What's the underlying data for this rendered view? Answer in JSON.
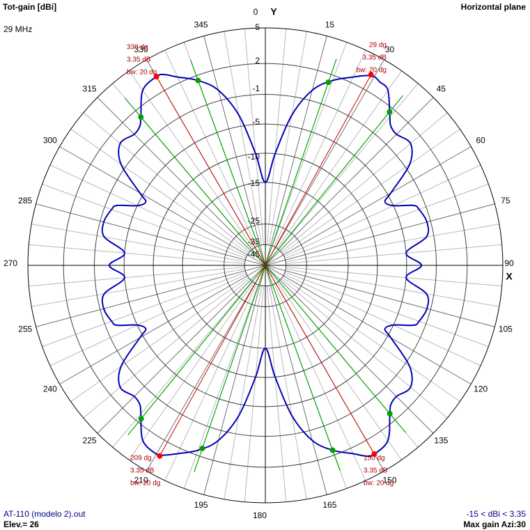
{
  "header": {
    "left_title": "Tot-gain [dBi]",
    "right_title": "Horizontal plane",
    "frequency": "29 MHz"
  },
  "footer": {
    "file_name": "AT-110 (modelo 2).out",
    "elevation": "Elev.= 26",
    "scale_range": "-15 < dBi < 3.35",
    "max_gain": "Max gain Azi:30"
  },
  "axes": {
    "y_label": "Y",
    "x_label": "X"
  },
  "colors": {
    "pattern": "#0000b4",
    "grid": "#404040",
    "axis": "#000000",
    "max_marker": "#ff0000",
    "max_line": "#cc0000",
    "bw_marker": "#00a000",
    "bw_line": "#00a000",
    "annotation": "#b00000"
  },
  "chart_data": {
    "type": "polar",
    "angle_unit": "degrees (azimuth, clockwise from Y)",
    "angle_ticks": [
      "0",
      "15",
      "30",
      "45",
      "60",
      "75",
      "90",
      "105",
      "120",
      "135",
      "150",
      "165",
      "180",
      "195",
      "210",
      "225",
      "240",
      "255",
      "270",
      "285",
      "300",
      "315",
      "330",
      "345"
    ],
    "ring_labels": [
      "5",
      "2",
      "-1",
      "-5",
      "-10",
      "-15",
      "-25",
      "-35",
      "-45"
    ],
    "gain_range_dbi": [
      -15,
      3.35
    ],
    "series": [
      {
        "azimuth": [
          0,
          5,
          10,
          15,
          20,
          25,
          28,
          30,
          32,
          35,
          40,
          42,
          45,
          50,
          55,
          60,
          62,
          65,
          68,
          70,
          75,
          80,
          85,
          90,
          95,
          100,
          105,
          110,
          112,
          115,
          118,
          120,
          125,
          130,
          135,
          138,
          140,
          145,
          150,
          152,
          155,
          160,
          165,
          170,
          175,
          180,
          185,
          190,
          195,
          200,
          205,
          208,
          210,
          215,
          220,
          222,
          225,
          230,
          235,
          240,
          242,
          245,
          248,
          250,
          255,
          260,
          265,
          270,
          275,
          280,
          285,
          290,
          292,
          295,
          298,
          300,
          305,
          310,
          315,
          318,
          320,
          325,
          330,
          332,
          335,
          340,
          345,
          350,
          355
        ],
        "gain_dbi": [
          -15,
          -10,
          -3.5,
          0,
          1.5,
          2.5,
          3.1,
          3.35,
          3.2,
          3.0,
          1.2,
          0.6,
          0.4,
          0.8,
          -0.5,
          -4.5,
          -6,
          -5,
          -2.5,
          -2,
          -1.5,
          -2,
          -5,
          -3,
          -5,
          -2,
          -1.5,
          -2,
          -2.5,
          -5,
          -6,
          -4.5,
          -0.5,
          0.8,
          0.4,
          0.6,
          1.2,
          3.0,
          3.35,
          3.2,
          2.5,
          1.5,
          0,
          -3.5,
          -10,
          -15,
          -10,
          -3.5,
          0,
          1.5,
          2.5,
          3.1,
          3.35,
          3.0,
          1.2,
          0.6,
          0.4,
          0.8,
          -0.5,
          -4.5,
          -6,
          -5,
          -2.5,
          -2,
          -1.5,
          -2,
          -5,
          -3,
          -5,
          -2,
          -1.5,
          -2,
          -2.5,
          -5,
          -6,
          -4.5,
          -0.5,
          0.8,
          0.4,
          0.6,
          1.2,
          3.0,
          3.35,
          3.2,
          2.5,
          1.5,
          0,
          -3.5,
          -10
        ]
      }
    ],
    "max_gain_points": [
      {
        "azimuth": 330,
        "gain_dbi": 3.35,
        "labels": [
          "330 dg",
          "3.35 dB",
          "bw: 20 dg"
        ]
      },
      {
        "azimuth": 29,
        "gain_dbi": 3.35,
        "labels": [
          "29 dg",
          "3.35 dB",
          "bw: 20 dg"
        ]
      },
      {
        "azimuth": 209,
        "gain_dbi": 3.35,
        "labels": [
          "209 dg",
          "3.35 dB",
          "bw: 20 dg"
        ]
      },
      {
        "azimuth": 150,
        "gain_dbi": 3.35,
        "labels": [
          "150 dg",
          "3.35 dB",
          "bw: 20 dg"
        ]
      }
    ],
    "beamwidth_points": [
      {
        "azimuth": 340
      },
      {
        "azimuth": 320
      },
      {
        "azimuth": 19
      },
      {
        "azimuth": 39
      },
      {
        "azimuth": 140
      },
      {
        "azimuth": 160
      },
      {
        "azimuth": 199
      },
      {
        "azimuth": 219
      }
    ]
  }
}
